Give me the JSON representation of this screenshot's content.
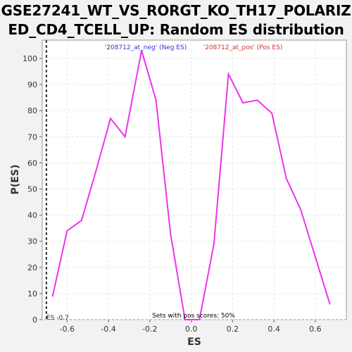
{
  "title_lines": [
    "GSE27241_WT_VS_RORGT_KO_TH17_POLARIZ",
    "ED_CD4_TCELL_UP: Random ES distribution"
  ],
  "legend": {
    "neg": "'208712_at_neg' (Neg ES)",
    "pos": "'208712_at_pos' (Pos ES)"
  },
  "annotations": {
    "es_marker": "ES -0.7",
    "pos_scores": "Sets with pos scores: 50%"
  },
  "colors": {
    "line": "#ee33ee",
    "neg_legend": "#3333cc",
    "pos_legend": "#cc3333",
    "marker": "#333333"
  },
  "chart_data": {
    "type": "line",
    "title": "GSE27241_WT_VS_RORGT_KO_TH17_POLARIZED_CD4_TCELL_UP: Random ES distribution",
    "xlabel": "ES",
    "ylabel": "P(ES)",
    "xlim": [
      -0.72,
      0.75
    ],
    "ylim": [
      0,
      107
    ],
    "xticks": [
      -0.6,
      -0.4,
      -0.2,
      0.0,
      0.2,
      0.4,
      0.6
    ],
    "xtick_labels": [
      "-0.6",
      "-0.4",
      "-0.2",
      "0.0",
      "0.2",
      "0.4",
      "0.6"
    ],
    "yticks": [
      0,
      10,
      20,
      30,
      40,
      50,
      60,
      70,
      80,
      90,
      100
    ],
    "ytick_labels": [
      "0",
      "10",
      "20",
      "30",
      "40",
      "50",
      "60",
      "70",
      "80",
      "90",
      "100"
    ],
    "grid": true,
    "es_marker_x": -0.7,
    "series": [
      {
        "x": [
          -0.67,
          -0.6,
          -0.53,
          -0.46,
          -0.39,
          -0.32,
          -0.24,
          -0.17,
          -0.1,
          -0.03,
          0.04,
          0.11,
          0.18,
          0.25,
          0.32,
          0.39,
          0.46,
          0.53,
          0.6,
          0.67
        ],
        "y": [
          9,
          34,
          38,
          57,
          77,
          70,
          103,
          84,
          33,
          0,
          0,
          29,
          94,
          83,
          84,
          79,
          54,
          42,
          24,
          6
        ]
      }
    ]
  }
}
